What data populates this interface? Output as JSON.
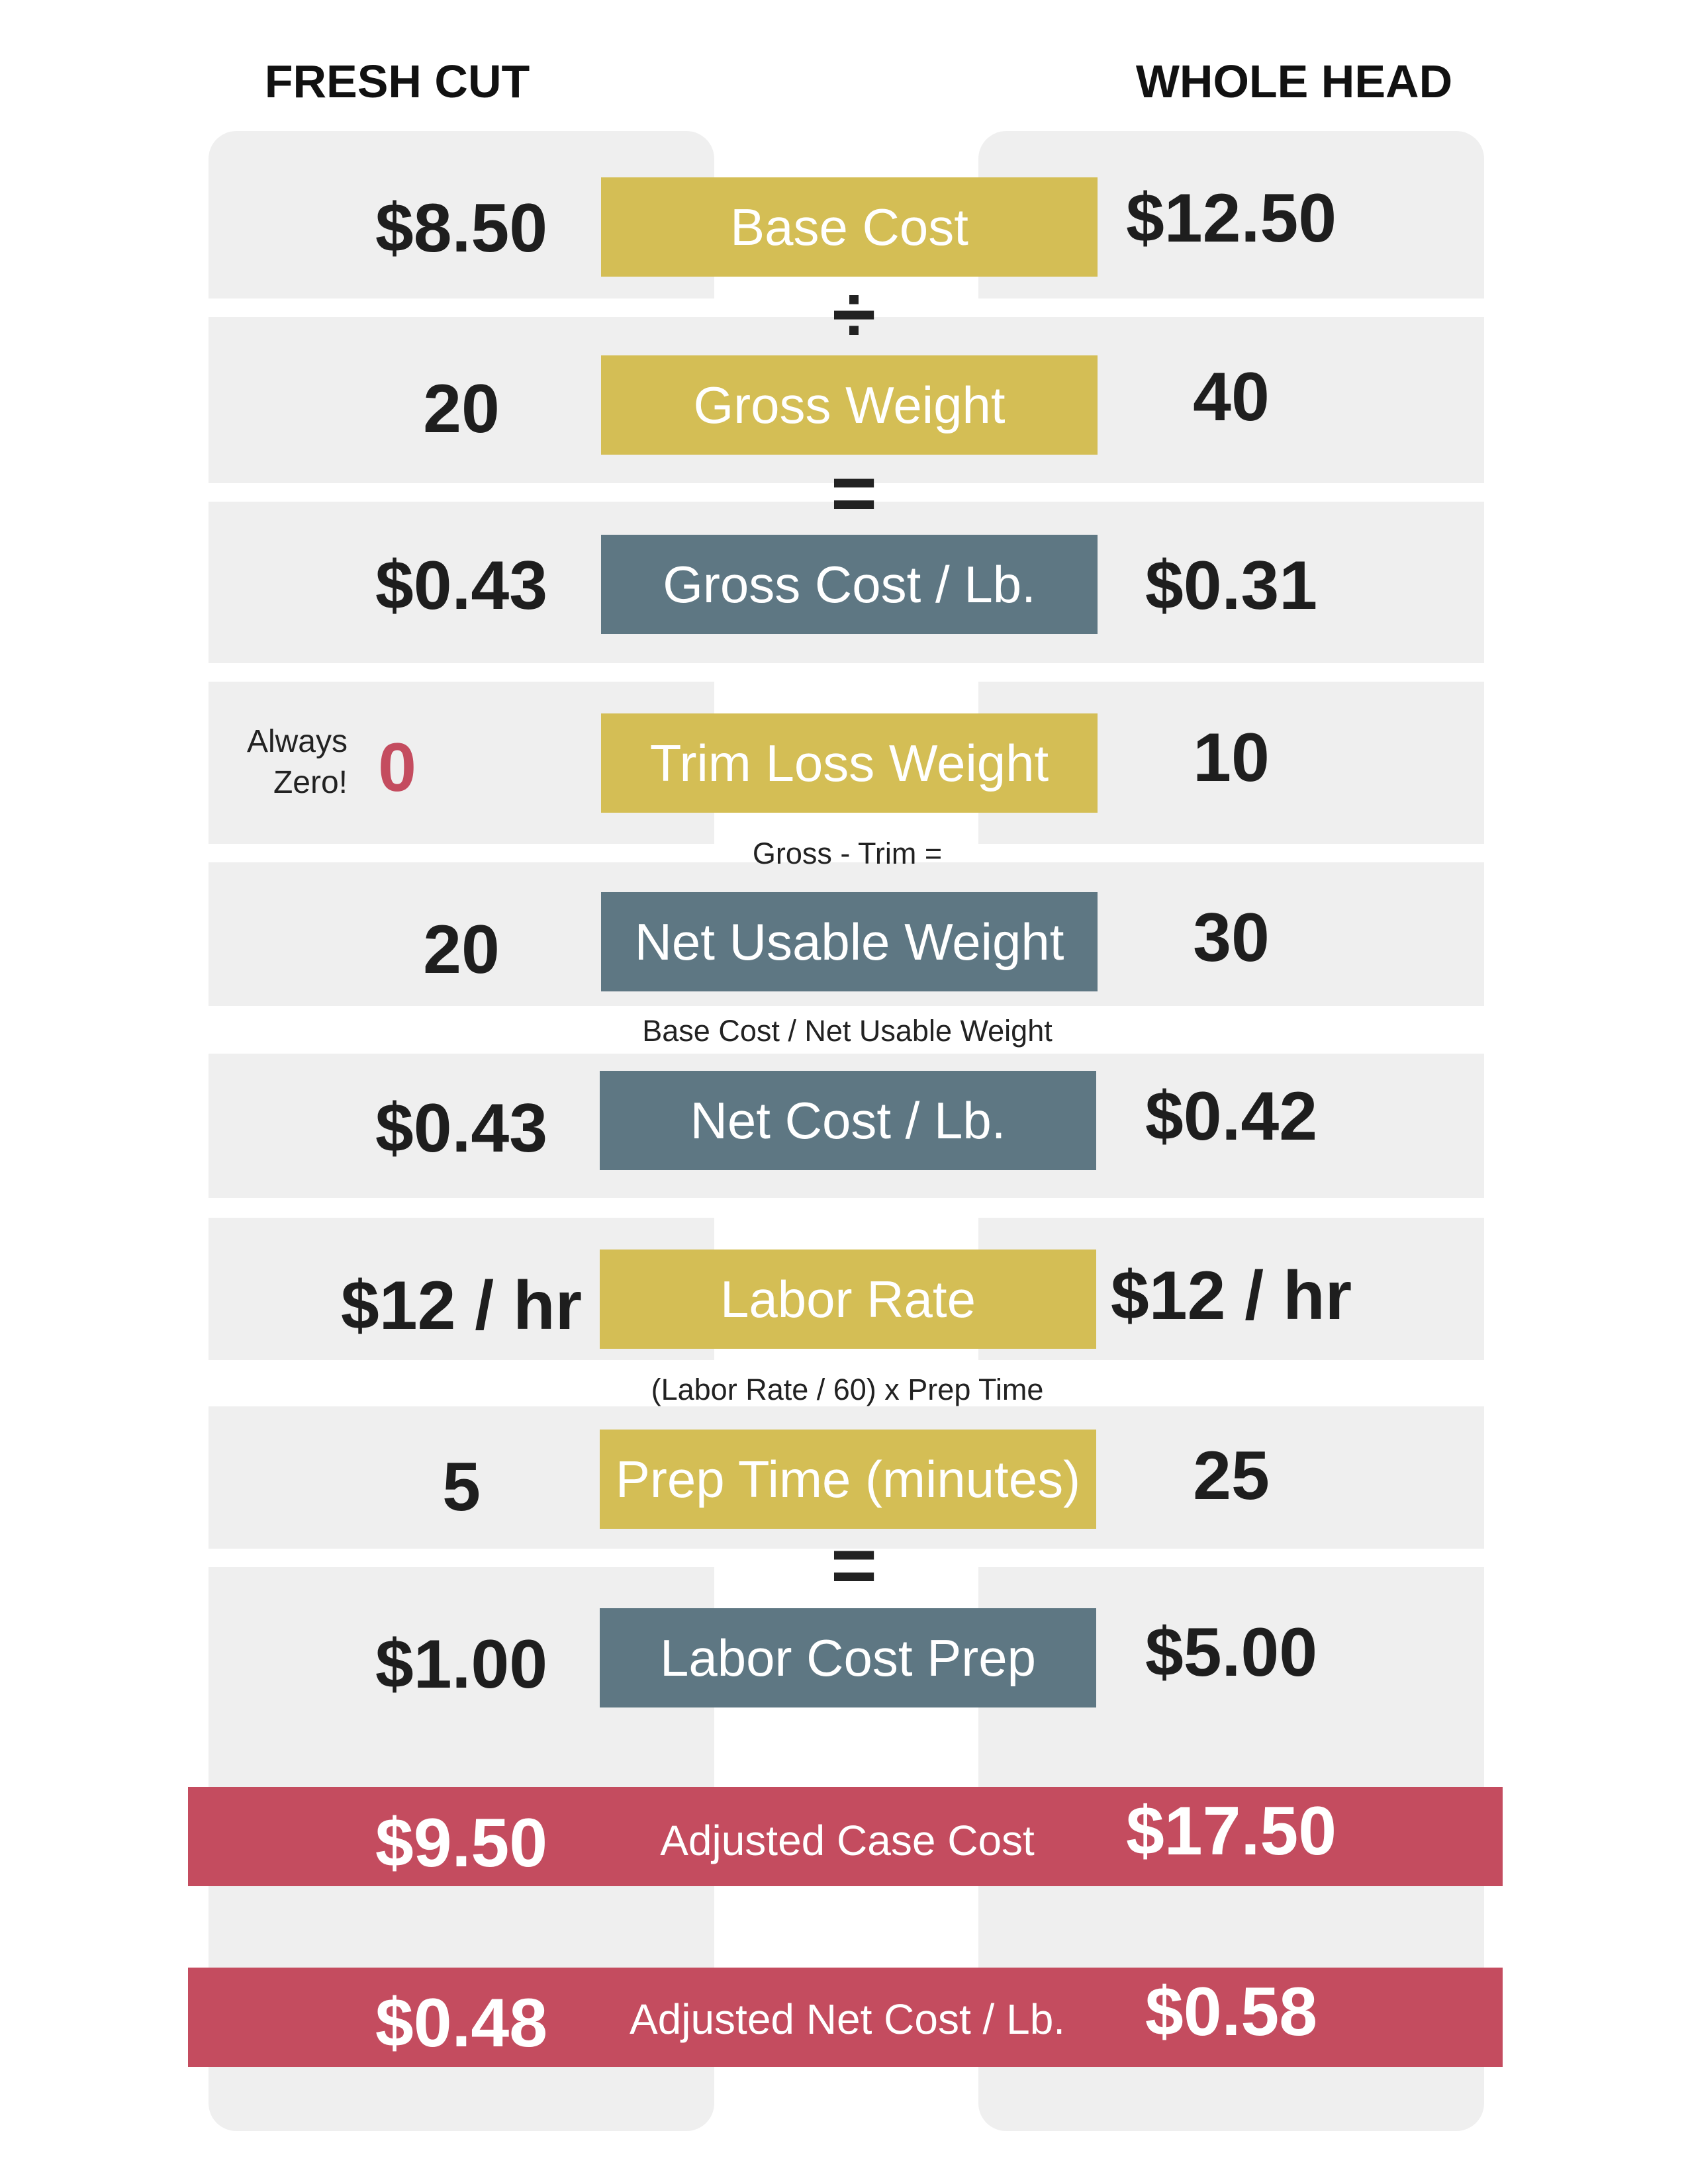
{
  "headers": {
    "left": "FRESH CUT",
    "right": "WHOLE HEAD"
  },
  "colors": {
    "gold": "#d4be55",
    "slate": "#5e7783",
    "red": "#c44c5f",
    "panel": "#efefef"
  },
  "rows": [
    {
      "label": "Base Cost",
      "left": "$8.50",
      "right": "$12.50"
    },
    {
      "label": "Gross Weight",
      "left": "20",
      "right": "40"
    },
    {
      "label": "Gross Cost / Lb.",
      "left": "$0.43",
      "right": "$0.31"
    },
    {
      "label": "Trim Loss Weight",
      "left": "0",
      "left_note": "Always Zero!",
      "right": "10"
    },
    {
      "label": "Net Usable Weight",
      "left": "20",
      "right": "30"
    },
    {
      "label": "Net Cost / Lb.",
      "left": "$0.43",
      "right": "$0.42"
    },
    {
      "label": "Labor Rate",
      "left": "$12 / hr",
      "right": "$12 / hr"
    },
    {
      "label": "Prep Time (minutes)",
      "left": "5",
      "right": "25"
    },
    {
      "label": "Labor Cost Prep",
      "left": "$1.00",
      "right": "$5.00"
    }
  ],
  "operators": {
    "divide": "÷",
    "equals_1": "=",
    "equals_2": "="
  },
  "notes": {
    "gross_minus_trim": "Gross - Trim =",
    "base_over_net": "Base Cost / Net Usable Weight",
    "labor_formula": "(Labor Rate / 60) x Prep Time"
  },
  "totals": [
    {
      "label": "Adjusted Case Cost",
      "left": "$9.50",
      "right": "$17.50"
    },
    {
      "label": "Adjusted Net Cost / Lb.",
      "left": "$0.48",
      "right": "$0.58"
    }
  ]
}
